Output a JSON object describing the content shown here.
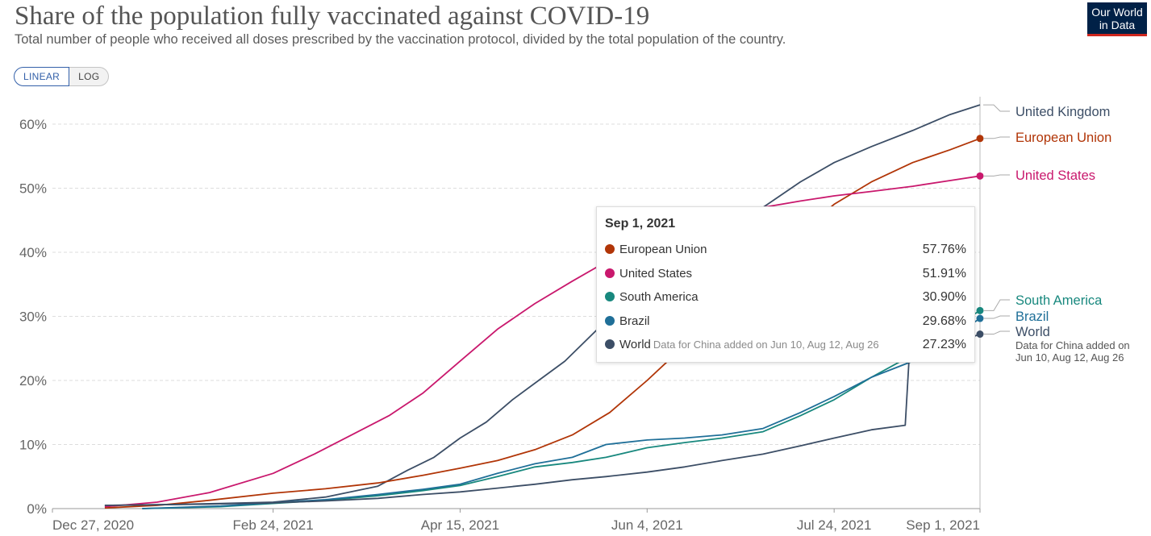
{
  "header": {
    "title": "Share of the population fully vaccinated against COVID-19",
    "subtitle": "Total number of people who received all doses prescribed by the vaccination protocol, divided by the total population of the country.",
    "logo_line1": "Our World",
    "logo_line2": "in Data"
  },
  "scale_toggle": {
    "linear_label": "LINEAR",
    "log_label": "LOG",
    "selected": "LINEAR"
  },
  "chart_data": {
    "type": "line",
    "title": "Share of the population fully vaccinated against COVID-19",
    "xlabel": "",
    "ylabel": "",
    "x_range": [
      "2020-12-27",
      "2021-09-01"
    ],
    "ylim": [
      0,
      63
    ],
    "y_ticks": [
      "0%",
      "10%",
      "20%",
      "30%",
      "40%",
      "50%",
      "60%"
    ],
    "x_ticks": [
      "Dec 27, 2020",
      "Feb 24, 2021",
      "Apr 15, 2021",
      "Jun 4, 2021",
      "Jul 24, 2021",
      "Sep 1, 2021"
    ],
    "grid": "horizontal dashed",
    "legend": "right-end labels",
    "series": [
      {
        "name": "United Kingdom",
        "color": "#3c4e66",
        "points": [
          [
            "2021-01-10",
            0.5
          ],
          [
            "2021-01-25",
            0.6
          ],
          [
            "2021-02-10",
            0.8
          ],
          [
            "2021-02-24",
            1.0
          ],
          [
            "2021-03-10",
            1.8
          ],
          [
            "2021-03-24",
            3.5
          ],
          [
            "2021-04-01",
            6.0
          ],
          [
            "2021-04-08",
            8.0
          ],
          [
            "2021-04-15",
            11.0
          ],
          [
            "2021-04-22",
            13.5
          ],
          [
            "2021-04-29",
            17.0
          ],
          [
            "2021-05-06",
            20.0
          ],
          [
            "2021-05-13",
            23.0
          ],
          [
            "2021-05-20",
            27.0
          ],
          [
            "2021-05-27",
            31.0
          ],
          [
            "2021-06-04",
            36.0
          ],
          [
            "2021-06-11",
            40.0
          ],
          [
            "2021-06-18",
            42.5
          ],
          [
            "2021-06-25",
            45.0
          ],
          [
            "2021-07-05",
            47.0
          ],
          [
            "2021-07-15",
            51.0
          ],
          [
            "2021-07-24",
            54.0
          ],
          [
            "2021-08-03",
            56.5
          ],
          [
            "2021-08-14",
            59.0
          ],
          [
            "2021-08-24",
            61.5
          ],
          [
            "2021-09-01",
            63.0
          ]
        ]
      },
      {
        "name": "European Union",
        "color": "#b13507",
        "points": [
          [
            "2021-01-10",
            0.1
          ],
          [
            "2021-01-24",
            0.5
          ],
          [
            "2021-02-07",
            1.3
          ],
          [
            "2021-02-24",
            2.4
          ],
          [
            "2021-03-10",
            3.1
          ],
          [
            "2021-03-24",
            4.0
          ],
          [
            "2021-04-05",
            5.2
          ],
          [
            "2021-04-15",
            6.3
          ],
          [
            "2021-04-25",
            7.5
          ],
          [
            "2021-05-05",
            9.2
          ],
          [
            "2021-05-15",
            11.5
          ],
          [
            "2021-05-25",
            15.0
          ],
          [
            "2021-06-04",
            20.0
          ],
          [
            "2021-06-15",
            26.0
          ],
          [
            "2021-06-25",
            32.0
          ],
          [
            "2021-07-05",
            38.0
          ],
          [
            "2021-07-15",
            43.0
          ],
          [
            "2021-07-24",
            47.5
          ],
          [
            "2021-08-03",
            51.0
          ],
          [
            "2021-08-14",
            54.0
          ],
          [
            "2021-08-24",
            56.0
          ],
          [
            "2021-09-01",
            57.76
          ]
        ]
      },
      {
        "name": "United States",
        "color": "#c9186d",
        "points": [
          [
            "2021-01-10",
            0.3
          ],
          [
            "2021-01-24",
            1.0
          ],
          [
            "2021-02-07",
            2.5
          ],
          [
            "2021-02-24",
            5.5
          ],
          [
            "2021-03-07",
            8.5
          ],
          [
            "2021-03-17",
            11.5
          ],
          [
            "2021-03-27",
            14.5
          ],
          [
            "2021-04-05",
            18.0
          ],
          [
            "2021-04-15",
            23.0
          ],
          [
            "2021-04-25",
            28.0
          ],
          [
            "2021-05-05",
            32.0
          ],
          [
            "2021-05-15",
            35.5
          ],
          [
            "2021-05-24",
            38.5
          ],
          [
            "2021-06-04",
            41.5
          ],
          [
            "2021-06-14",
            43.5
          ],
          [
            "2021-06-24",
            45.5
          ],
          [
            "2021-07-05",
            47.0
          ],
          [
            "2021-07-15",
            48.0
          ],
          [
            "2021-07-24",
            48.8
          ],
          [
            "2021-08-03",
            49.5
          ],
          [
            "2021-08-14",
            50.3
          ],
          [
            "2021-08-24",
            51.2
          ],
          [
            "2021-09-01",
            51.91
          ]
        ]
      },
      {
        "name": "South America",
        "color": "#18887e",
        "points": [
          [
            "2021-01-20",
            0.0
          ],
          [
            "2021-02-10",
            0.3
          ],
          [
            "2021-02-24",
            0.8
          ],
          [
            "2021-03-10",
            1.3
          ],
          [
            "2021-03-24",
            2.0
          ],
          [
            "2021-04-05",
            2.8
          ],
          [
            "2021-04-15",
            3.6
          ],
          [
            "2021-04-25",
            5.0
          ],
          [
            "2021-05-05",
            6.5
          ],
          [
            "2021-05-15",
            7.2
          ],
          [
            "2021-05-24",
            8.0
          ],
          [
            "2021-06-04",
            9.5
          ],
          [
            "2021-06-14",
            10.3
          ],
          [
            "2021-06-24",
            11.0
          ],
          [
            "2021-07-05",
            12.0
          ],
          [
            "2021-07-15",
            14.5
          ],
          [
            "2021-07-24",
            17.0
          ],
          [
            "2021-08-03",
            20.5
          ],
          [
            "2021-08-14",
            24.0
          ],
          [
            "2021-08-24",
            28.0
          ],
          [
            "2021-09-01",
            30.9
          ]
        ]
      },
      {
        "name": "Brazil",
        "color": "#1f6f98",
        "points": [
          [
            "2021-01-20",
            0.0
          ],
          [
            "2021-02-10",
            0.4
          ],
          [
            "2021-02-24",
            0.9
          ],
          [
            "2021-03-10",
            1.4
          ],
          [
            "2021-03-24",
            2.2
          ],
          [
            "2021-04-05",
            3.0
          ],
          [
            "2021-04-15",
            3.8
          ],
          [
            "2021-04-25",
            5.5
          ],
          [
            "2021-05-05",
            7.0
          ],
          [
            "2021-05-15",
            8.0
          ],
          [
            "2021-05-24",
            10.0
          ],
          [
            "2021-06-04",
            10.7
          ],
          [
            "2021-06-14",
            11.0
          ],
          [
            "2021-06-24",
            11.5
          ],
          [
            "2021-07-05",
            12.5
          ],
          [
            "2021-07-15",
            15.0
          ],
          [
            "2021-07-24",
            17.5
          ],
          [
            "2021-08-03",
            20.5
          ],
          [
            "2021-08-14",
            23.0
          ],
          [
            "2021-08-24",
            26.5
          ],
          [
            "2021-09-01",
            29.68
          ]
        ]
      },
      {
        "name": "World",
        "note": "Data for China added on Jun 10, Aug 12, Aug 26",
        "color": "#3c4e66",
        "points": [
          [
            "2021-01-10",
            0.5
          ],
          [
            "2021-01-24",
            0.6
          ],
          [
            "2021-02-07",
            0.7
          ],
          [
            "2021-02-24",
            0.9
          ],
          [
            "2021-03-10",
            1.2
          ],
          [
            "2021-03-24",
            1.6
          ],
          [
            "2021-04-05",
            2.2
          ],
          [
            "2021-04-15",
            2.6
          ],
          [
            "2021-04-25",
            3.2
          ],
          [
            "2021-05-05",
            3.8
          ],
          [
            "2021-05-15",
            4.5
          ],
          [
            "2021-05-24",
            5.0
          ],
          [
            "2021-06-04",
            5.7
          ],
          [
            "2021-06-14",
            6.5
          ],
          [
            "2021-06-24",
            7.5
          ],
          [
            "2021-07-05",
            8.5
          ],
          [
            "2021-07-15",
            9.8
          ],
          [
            "2021-07-24",
            11.0
          ],
          [
            "2021-08-03",
            12.3
          ],
          [
            "2021-08-12",
            13.0
          ],
          [
            "2021-08-13",
            23.0
          ],
          [
            "2021-08-24",
            25.5
          ],
          [
            "2021-09-01",
            27.23
          ]
        ]
      }
    ],
    "end_labels": [
      {
        "series": "United Kingdom",
        "text": "United Kingdom",
        "color": "#3c4e66"
      },
      {
        "series": "European Union",
        "text": "European Union",
        "color": "#b13507"
      },
      {
        "series": "United States",
        "text": "United States",
        "color": "#c9186d"
      },
      {
        "series": "South America",
        "text": "South America",
        "color": "#18887e"
      },
      {
        "series": "Brazil",
        "text": "Brazil",
        "color": "#1f6f98"
      },
      {
        "series": "World",
        "text": "World",
        "color": "#3c4e66",
        "note_lines": [
          "Data for China added on",
          "Jun 10, Aug 12, Aug 26"
        ]
      }
    ]
  },
  "tooltip": {
    "date": "Sep 1, 2021",
    "rows": [
      {
        "name": "European Union",
        "value": "57.76%",
        "color": "#b13507",
        "note": ""
      },
      {
        "name": "United States",
        "value": "51.91%",
        "color": "#c9186d",
        "note": ""
      },
      {
        "name": "South America",
        "value": "30.90%",
        "color": "#18887e",
        "note": ""
      },
      {
        "name": "Brazil",
        "value": "29.68%",
        "color": "#1f6f98",
        "note": ""
      },
      {
        "name": "World",
        "value": "27.23%",
        "color": "#3c4e66",
        "note": "Data for China added on Jun 10, Aug 12, Aug 26"
      }
    ]
  }
}
